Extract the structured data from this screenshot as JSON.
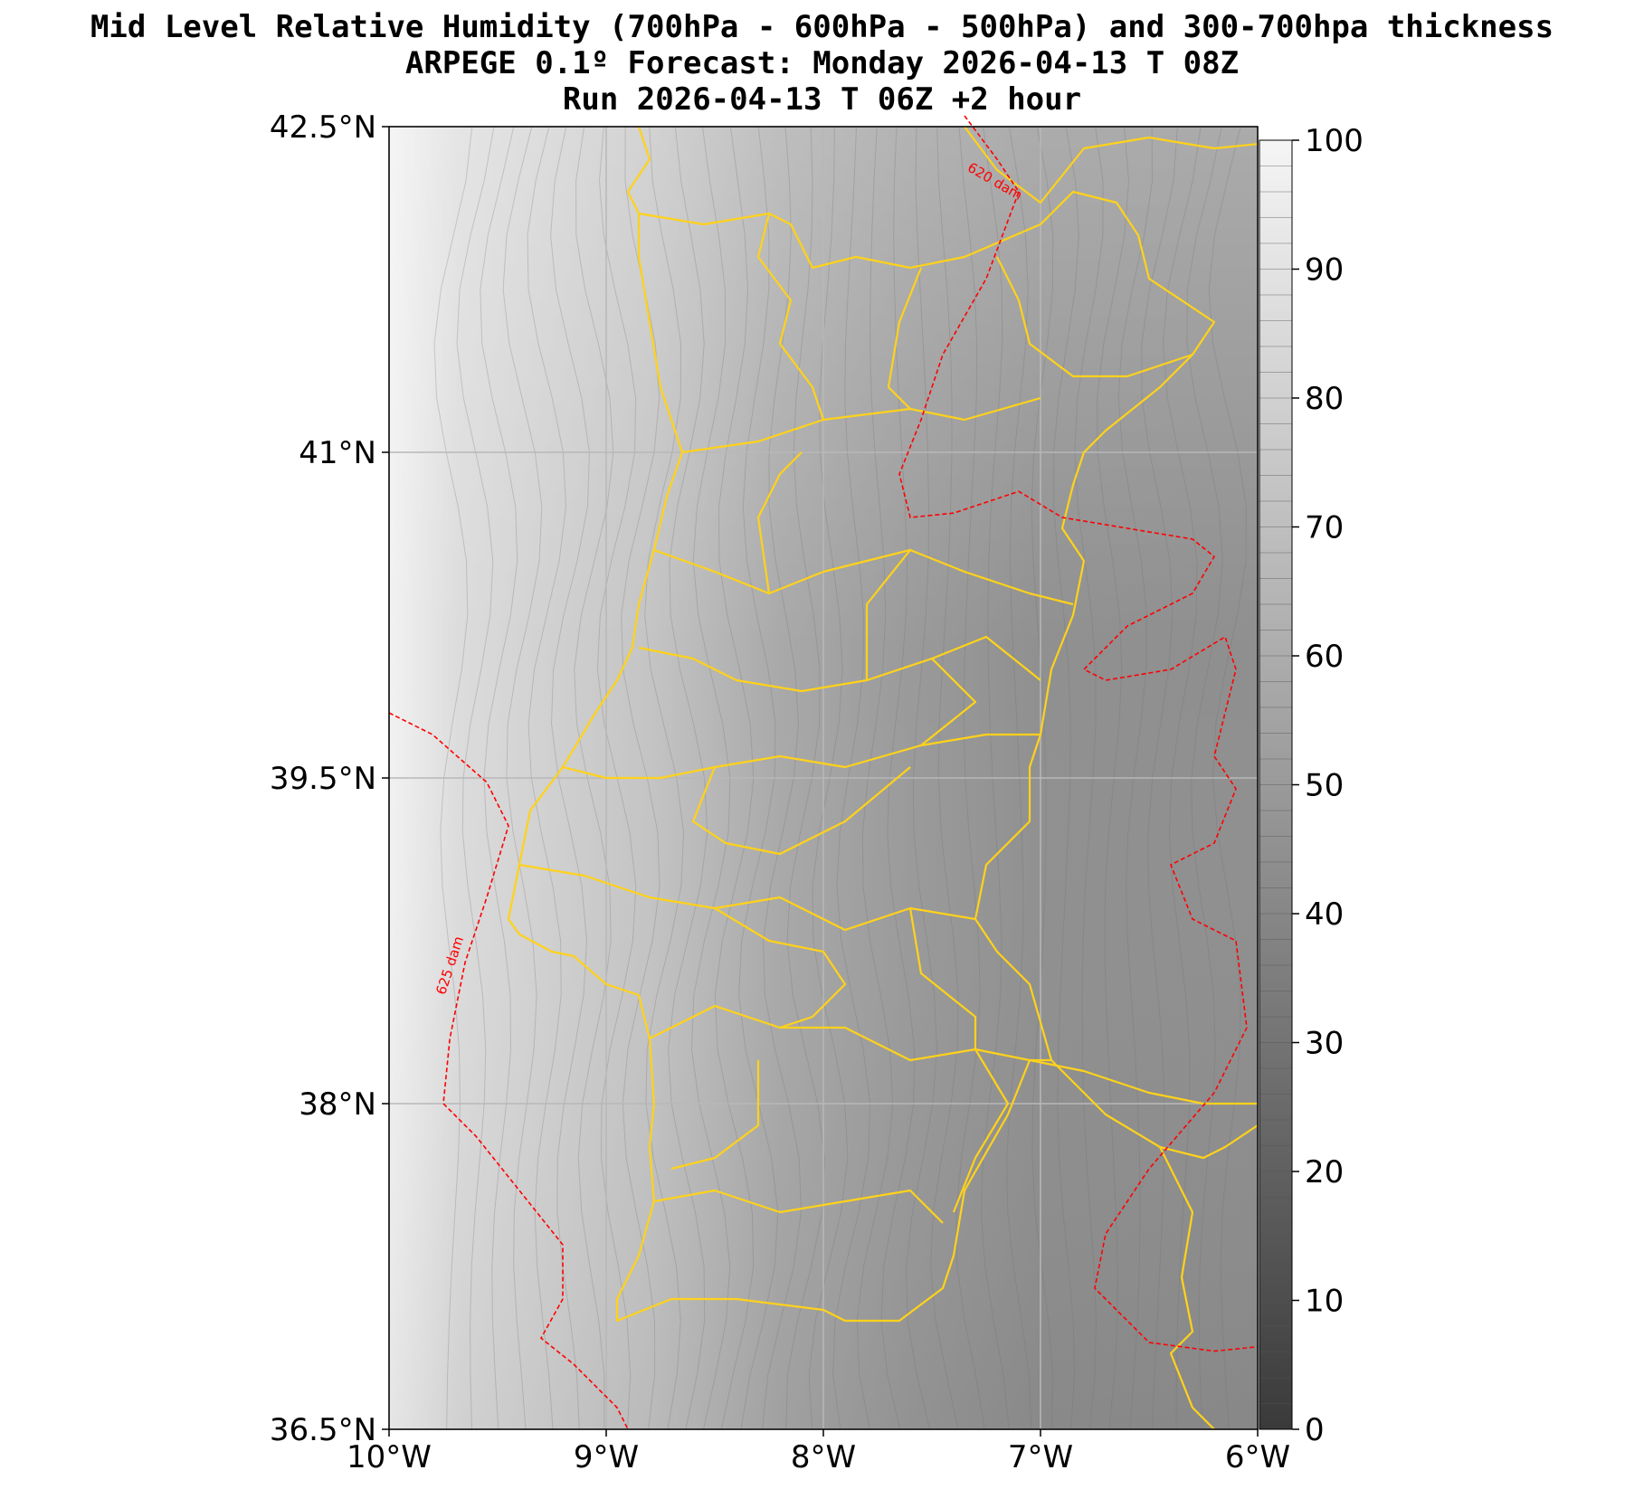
{
  "title": {
    "line1": "Mid Level Relative Humidity (700hPa - 600hPa - 500hPa) and 300-700hpa thickness",
    "line2": "ARPEGE 0.1º Forecast: Monday 2026-04-13 T 08Z",
    "line3": "Run 2026-04-13 T 06Z +2 hour"
  },
  "map": {
    "lon_range": [
      -10,
      -6
    ],
    "lat_range": [
      36.5,
      42.5
    ],
    "x_ticks": [
      {
        "value": -10,
        "label": "10°W"
      },
      {
        "value": -9,
        "label": "9°W"
      },
      {
        "value": -8,
        "label": "8°W"
      },
      {
        "value": -7,
        "label": "7°W"
      },
      {
        "value": -6,
        "label": "6°W"
      }
    ],
    "y_ticks": [
      {
        "value": 42.5,
        "label": "42.5°N"
      },
      {
        "value": 41,
        "label": "41°N"
      },
      {
        "value": 39.5,
        "label": "39.5°N"
      },
      {
        "value": 38,
        "label": "38°N"
      },
      {
        "value": 36.5,
        "label": "36.5°N"
      }
    ],
    "grid": true,
    "border_color": "#FFD21A",
    "thickness_line_color": "#FF0000",
    "thickness_labels": [
      {
        "text": "620 dam",
        "lon": -7.22,
        "lat": 42.23
      },
      {
        "text": "625 dam",
        "lon": -9.7,
        "lat": 38.63
      }
    ],
    "thickness_lines": [
      [
        [
          -7.35,
          42.55
        ],
        [
          -7.2,
          42.35
        ],
        [
          -7.1,
          42.2
        ],
        [
          -7.25,
          41.8
        ],
        [
          -7.45,
          41.45
        ],
        [
          -7.55,
          41.15
        ],
        [
          -7.65,
          40.9
        ],
        [
          -7.6,
          40.7
        ],
        [
          -7.4,
          40.72
        ],
        [
          -7.1,
          40.82
        ],
        [
          -6.9,
          40.7
        ],
        [
          -6.6,
          40.65
        ],
        [
          -6.3,
          40.6
        ],
        [
          -6.2,
          40.52
        ],
        [
          -6.3,
          40.35
        ],
        [
          -6.6,
          40.2
        ],
        [
          -6.8,
          40.0
        ],
        [
          -6.7,
          39.95
        ],
        [
          -6.4,
          40.0
        ],
        [
          -6.15,
          40.15
        ],
        [
          -6.1,
          40.0
        ],
        [
          -6.2,
          39.6
        ],
        [
          -6.1,
          39.45
        ],
        [
          -6.2,
          39.2
        ],
        [
          -6.4,
          39.1
        ],
        [
          -6.3,
          38.85
        ],
        [
          -6.1,
          38.75
        ],
        [
          -6.05,
          38.35
        ],
        [
          -6.2,
          38.05
        ],
        [
          -6.5,
          37.7
        ],
        [
          -6.7,
          37.4
        ],
        [
          -6.75,
          37.15
        ],
        [
          -6.5,
          36.9
        ],
        [
          -6.2,
          36.86
        ],
        [
          -6.0,
          36.88
        ]
      ],
      [
        [
          -10.0,
          39.8
        ],
        [
          -9.8,
          39.7
        ],
        [
          -9.55,
          39.48
        ],
        [
          -9.45,
          39.28
        ],
        [
          -9.55,
          38.95
        ],
        [
          -9.65,
          38.65
        ],
        [
          -9.72,
          38.3
        ],
        [
          -9.75,
          38.0
        ],
        [
          -9.6,
          37.85
        ],
        [
          -9.4,
          37.6
        ],
        [
          -9.2,
          37.35
        ],
        [
          -9.2,
          37.1
        ],
        [
          -9.3,
          36.92
        ],
        [
          -9.15,
          36.8
        ],
        [
          -8.95,
          36.6
        ],
        [
          -8.9,
          36.5
        ]
      ]
    ]
  },
  "colorbar": {
    "min": 0,
    "max": 100,
    "ticks": [
      0,
      10,
      20,
      30,
      40,
      50,
      60,
      70,
      80,
      90,
      100
    ]
  }
}
